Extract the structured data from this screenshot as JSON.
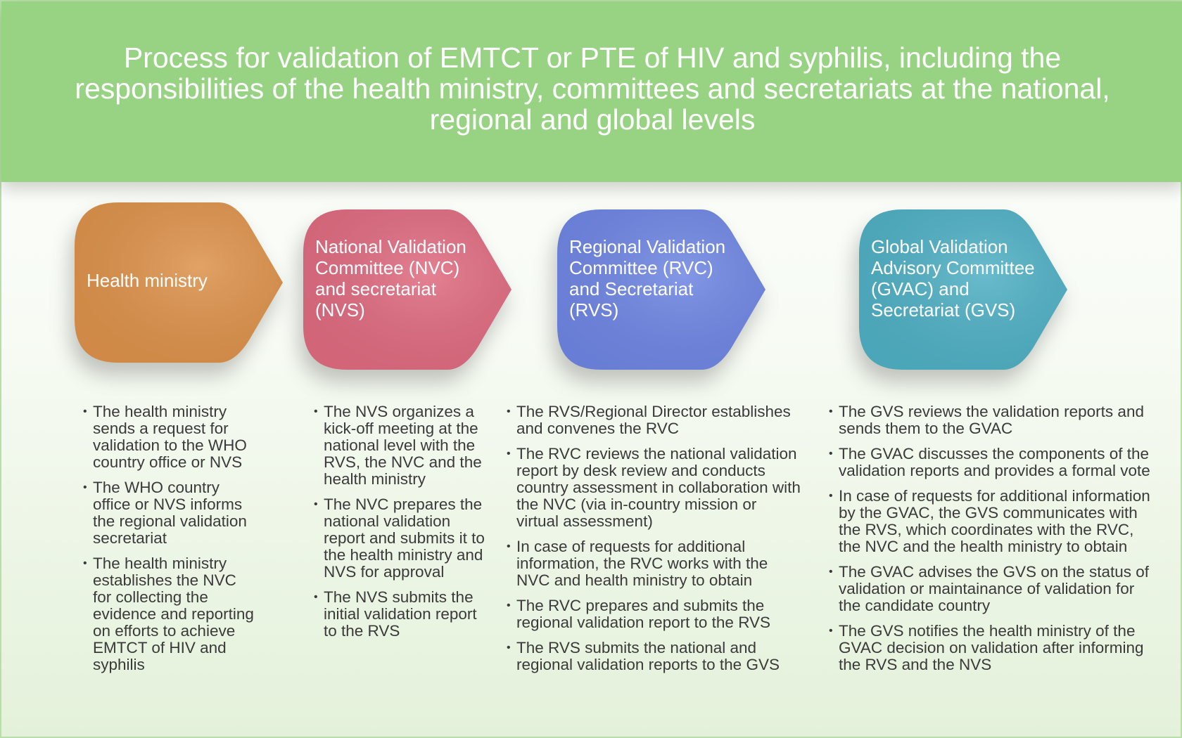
{
  "title": "Process for validation of EMTCT or PTE of HIV and syphilis, including the responsibilities of the health ministry, committees and secretariats at the national, regional and global levels",
  "colors": {
    "header": "#98d384",
    "health_ministry": "#dd924b",
    "nvc": "#df6b80",
    "rvc": "#6f86e3",
    "gvac": "#4fb0c4"
  },
  "steps": [
    {
      "label": "Health ministry",
      "bullets": [
        "The health ministry sends a request for validation to the WHO country office or NVS",
        "The WHO country office or NVS informs the regional validation secretariat",
        "The health ministry establishes the NVC for collecting the evidence and reporting on efforts to achieve EMTCT of HIV and syphilis"
      ]
    },
    {
      "label": "National Validation Committee (NVC) and secretariat (NVS)",
      "bullets": [
        "The NVS organizes a kick-off meeting at the national level with the RVS, the NVC and the health ministry",
        "The NVC prepares the national validation report and submits it to the health ministry and NVS for approval",
        "The NVS submits the initial validation report to the RVS"
      ]
    },
    {
      "label": "Regional Validation Committee (RVC) and Secretariat (RVS)",
      "bullets": [
        "The RVS/Regional Director establishes and convenes the RVC",
        "The RVC reviews the national validation report by desk review and conducts country assessment in collaboration with the NVC (via in-country mission or virtual assessment)",
        "In case of requests for additional information, the RVC works with the NVC and health ministry to obtain",
        "The RVC prepares and submits the regional validation report to the RVS",
        "The RVS submits the national and regional validation reports to the GVS"
      ]
    },
    {
      "label": "Global Validation Advisory Committee (GVAC) and Secretariat (GVS)",
      "bullets": [
        "The GVS reviews the validation reports and sends them to the GVAC",
        "The GVAC discusses the components of the validation reports and provides a formal vote",
        "In case of requests for additional information by the GVAC, the GVS communicates with the RVS, which coordinates with the RVC, the NVC and the health ministry to obtain",
        "The GVAC advises the GVS on the status of validation or maintainance of validation for the candidate country",
        "The GVS notifies the health ministry of the GVAC decision on validation after informing the RVS and the NVS"
      ]
    }
  ]
}
